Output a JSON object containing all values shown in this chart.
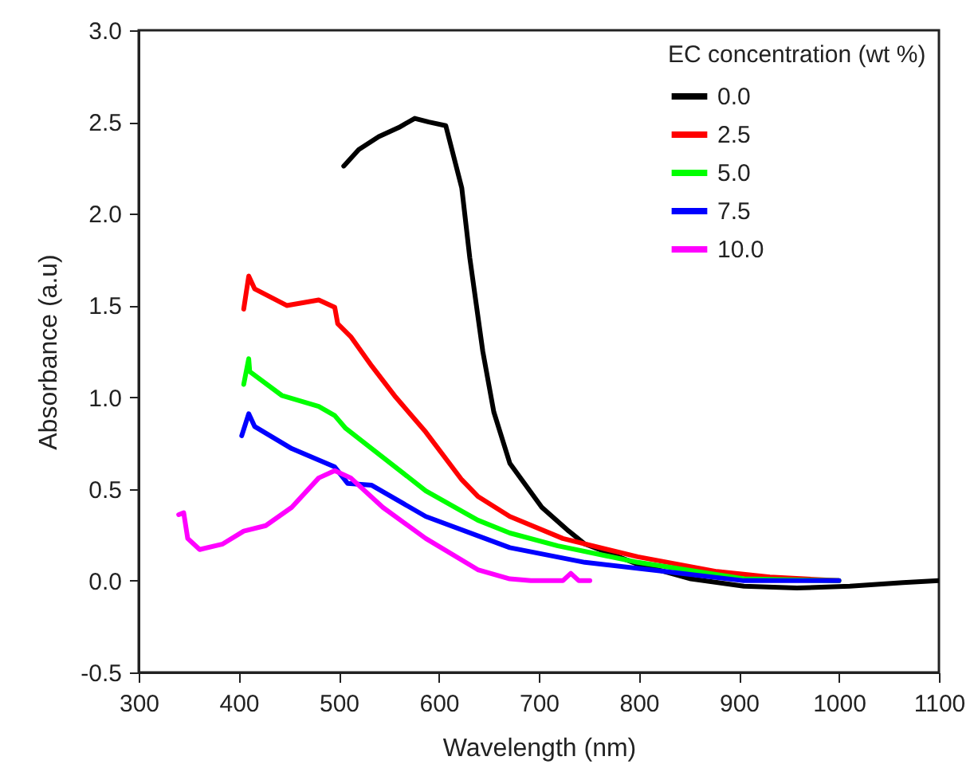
{
  "chart_data": {
    "type": "line",
    "xlabel": "Wavelength (nm)",
    "ylabel": "Absorbance (a.u)",
    "legend_title": "EC concentration (wt %)",
    "legend": "top right",
    "grid": false,
    "marker": "none",
    "line_style": "solid",
    "xlim": [
      300,
      1100
    ],
    "xticks": [
      300,
      400,
      500,
      600,
      700,
      800,
      900,
      1000,
      1100
    ],
    "ylim": [
      -0.5,
      3.0
    ],
    "yticks": [
      {
        "value": -0.5,
        "label": "-0.5"
      },
      {
        "value": 0,
        "label": "0.0"
      },
      0.5,
      {
        "value": 1,
        "label": "1.0"
      },
      1.5,
      {
        "value": 2,
        "label": "2.0"
      },
      2.5,
      {
        "value": 3,
        "label": "3.0"
      }
    ],
    "series": [
      {
        "name": "0.0",
        "color": "#000000",
        "x": [
          505,
          520,
          540,
          560,
          576,
          590,
          607,
          623,
          631,
          644,
          655,
          671,
          703,
          730,
          746,
          799,
          852,
          905,
          958,
          1011,
          1064,
          1100
        ],
        "values": [
          2.26,
          2.35,
          2.42,
          2.47,
          2.52,
          2.5,
          2.48,
          2.14,
          1.76,
          1.25,
          0.92,
          0.64,
          0.4,
          0.27,
          0.2,
          0.09,
          0.01,
          -0.03,
          -0.04,
          -0.03,
          -0.01,
          0.0
        ]
      },
      {
        "name": "2.5",
        "color": "#ff0000",
        "x": [
          405,
          410,
          416,
          448,
          480,
          496,
          499,
          512,
          533,
          557,
          587,
          623,
          639,
          671,
          724,
          799,
          878,
          931,
          1000
        ],
        "values": [
          1.48,
          1.66,
          1.59,
          1.5,
          1.53,
          1.49,
          1.4,
          1.33,
          1.17,
          1.0,
          0.81,
          0.55,
          0.46,
          0.35,
          0.23,
          0.13,
          0.05,
          0.02,
          0.0
        ]
      },
      {
        "name": "5.0",
        "color": "#00ff00",
        "x": [
          405,
          410,
          411,
          443,
          480,
          496,
          507,
          533,
          587,
          639,
          671,
          719,
          799,
          905,
          1000
        ],
        "values": [
          1.07,
          1.21,
          1.14,
          1.01,
          0.95,
          0.9,
          0.83,
          0.72,
          0.49,
          0.33,
          0.26,
          0.19,
          0.1,
          0.01,
          0.0
        ]
      },
      {
        "name": "7.5",
        "color": "#0000ff",
        "x": [
          403,
          410,
          416,
          453,
          496,
          509,
          533,
          587,
          671,
          746,
          826,
          905,
          1000
        ],
        "values": [
          0.79,
          0.91,
          0.84,
          0.72,
          0.62,
          0.53,
          0.52,
          0.35,
          0.18,
          0.1,
          0.05,
          0.0,
          0.0
        ]
      },
      {
        "name": "10.0",
        "color": "#ff00ff",
        "x": [
          340,
          345,
          349,
          361,
          384,
          405,
          427,
          453,
          480,
          496,
          512,
          544,
          587,
          639,
          671,
          692,
          724,
          732,
          740,
          751
        ],
        "values": [
          0.36,
          0.37,
          0.23,
          0.17,
          0.2,
          0.27,
          0.3,
          0.4,
          0.56,
          0.6,
          0.56,
          0.4,
          0.23,
          0.06,
          0.01,
          0.0,
          0.0,
          0.04,
          0.0,
          0.0
        ]
      }
    ]
  }
}
